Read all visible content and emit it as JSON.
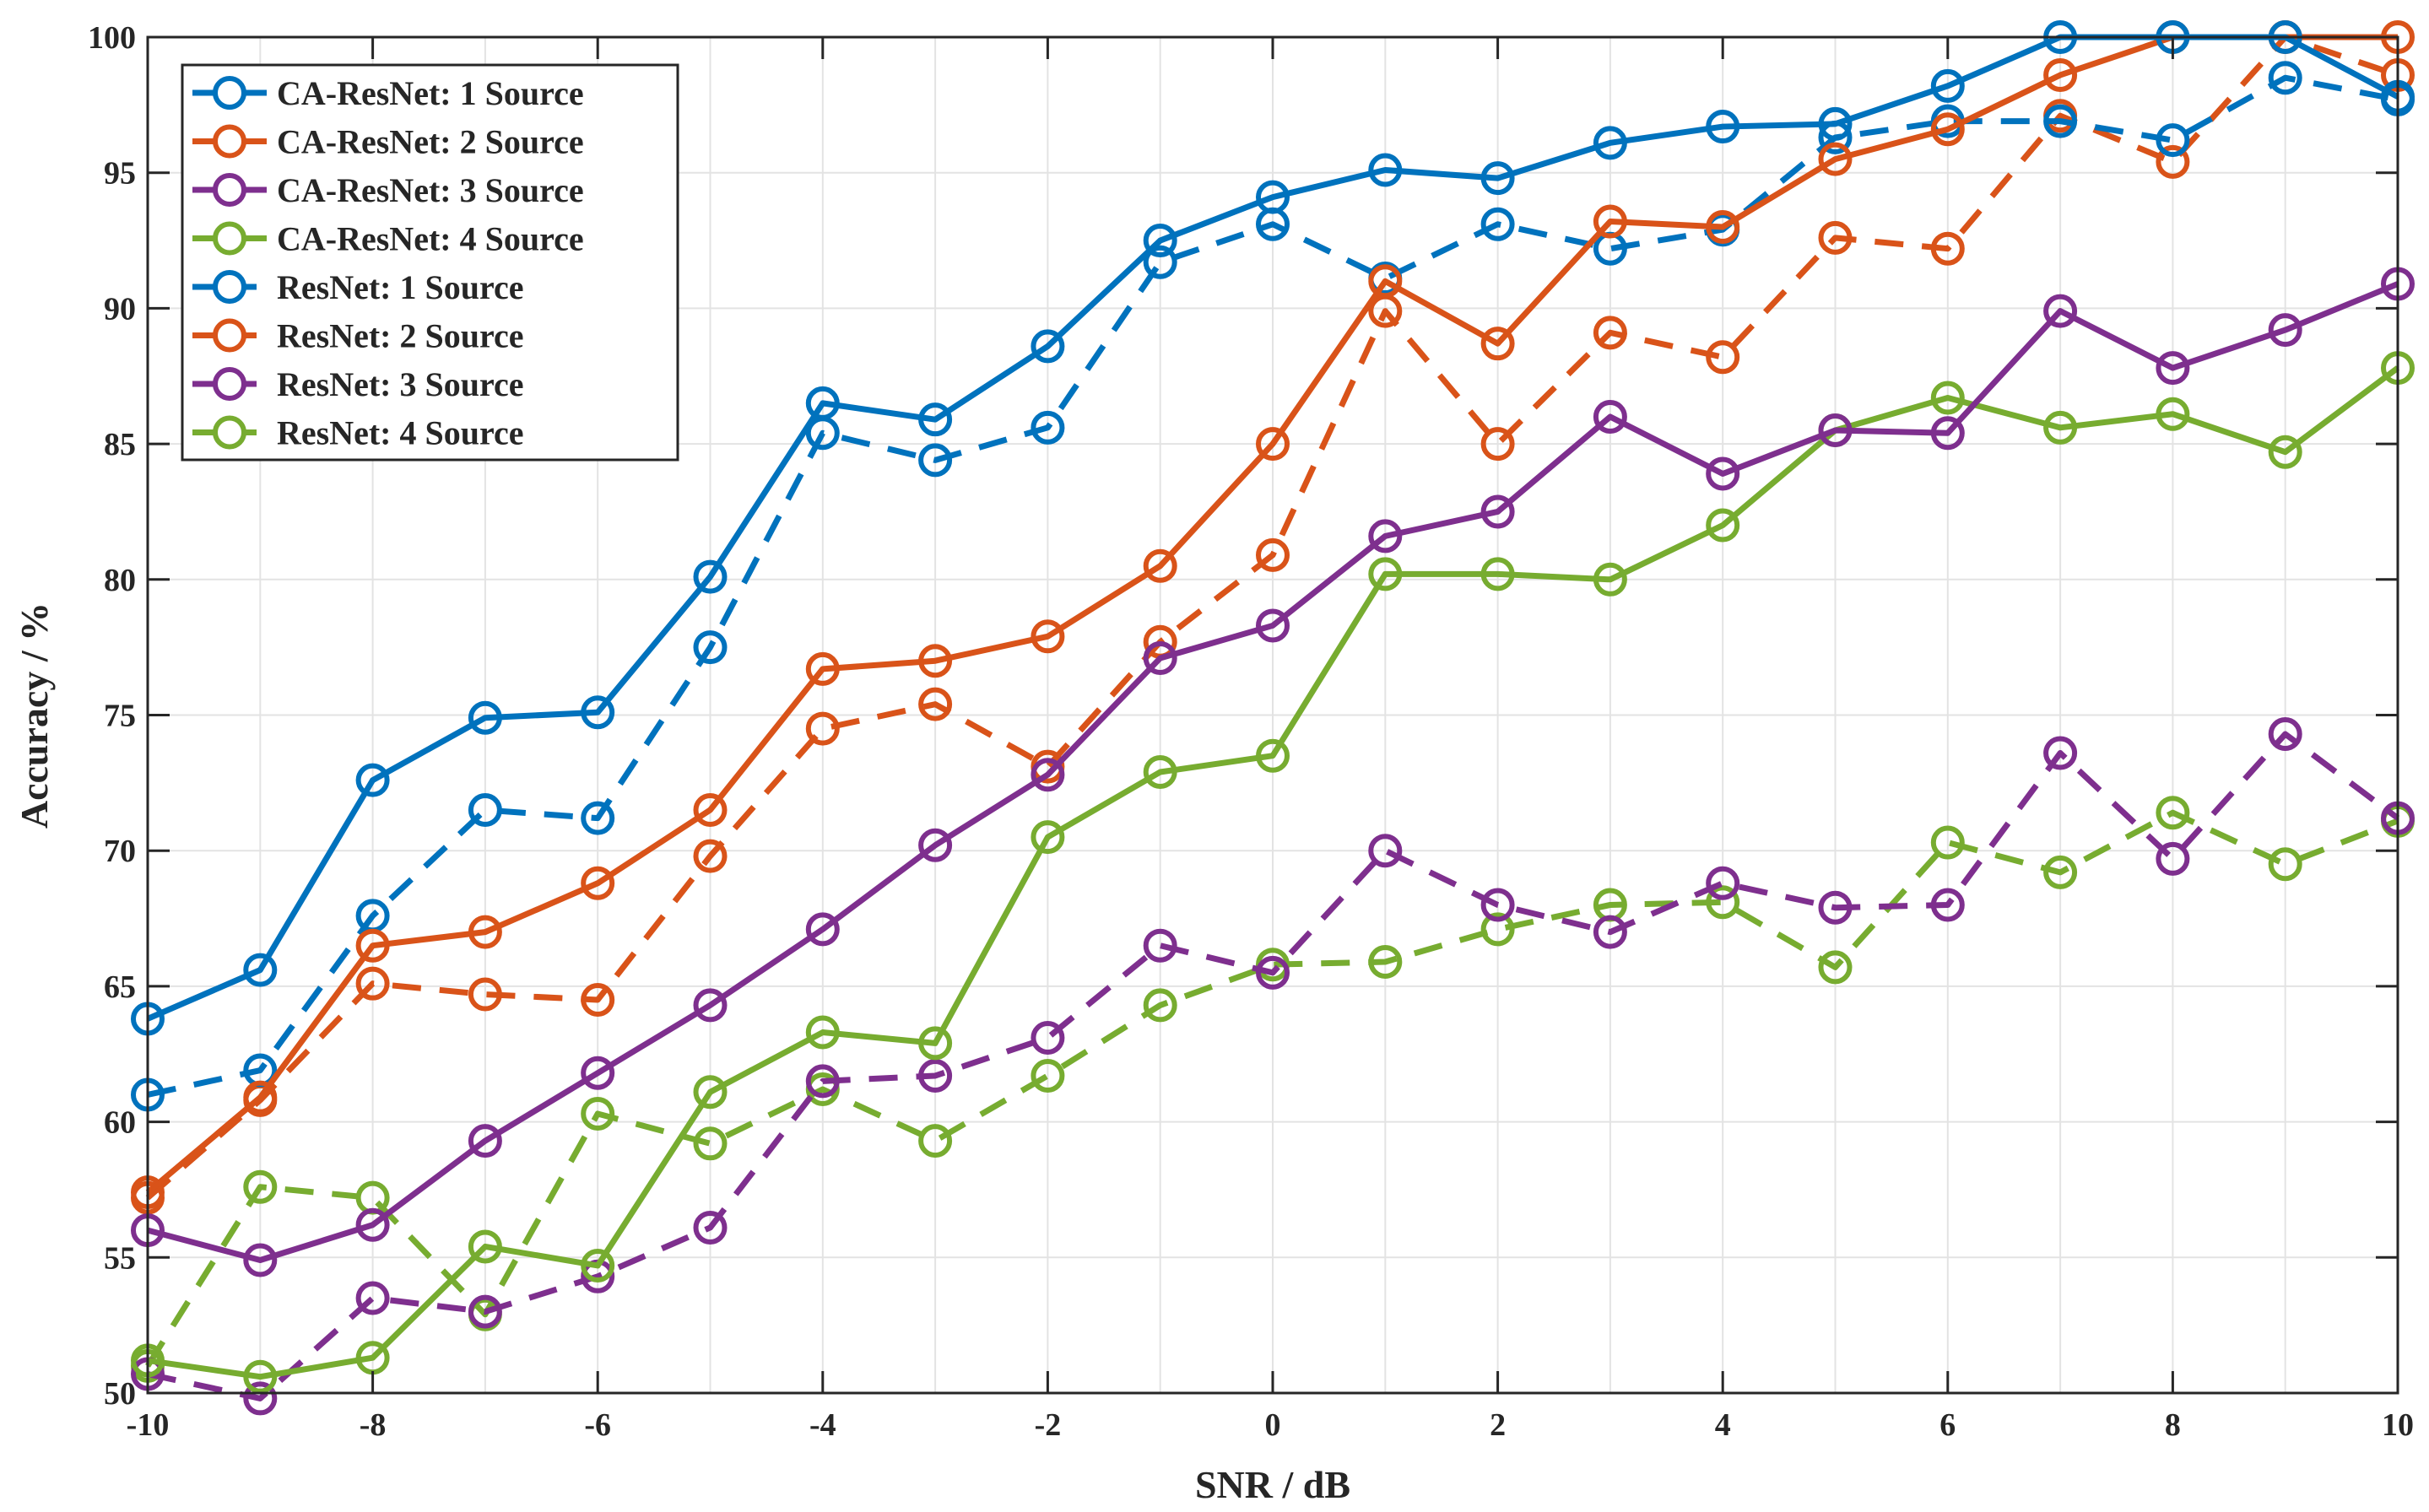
{
  "chart_data": {
    "type": "line",
    "xlabel": "SNR / dB",
    "ylabel": "Accuracy / %",
    "xlim": [
      -10,
      10
    ],
    "ylim": [
      50,
      100
    ],
    "xticks": [
      -10,
      -8,
      -6,
      -4,
      -2,
      0,
      2,
      4,
      6,
      8,
      10
    ],
    "yticks": [
      50,
      55,
      60,
      65,
      70,
      75,
      80,
      85,
      90,
      95,
      100
    ],
    "grid": true,
    "legend_position": "top-left",
    "marker": "circle",
    "x": [
      -10,
      -9,
      -8,
      -7,
      -6,
      -5,
      -4,
      -3,
      -2,
      -1,
      0,
      1,
      2,
      3,
      4,
      5,
      6,
      7,
      8,
      9,
      10
    ],
    "series": [
      {
        "name": "CA-ResNet: 1 Source",
        "color": "#0072BD",
        "style": "solid",
        "values": [
          63.8,
          65.6,
          72.6,
          74.9,
          75.1,
          80.1,
          86.5,
          85.9,
          88.6,
          92.5,
          94.1,
          95.1,
          94.8,
          96.1,
          96.7,
          96.8,
          98.2,
          100,
          100,
          100,
          97.8
        ]
      },
      {
        "name": "CA-ResNet: 2 Source",
        "color": "#D95319",
        "style": "solid",
        "values": [
          57.4,
          60.9,
          66.5,
          67.0,
          68.8,
          71.5,
          76.7,
          77.0,
          77.9,
          80.5,
          85.0,
          91.0,
          88.7,
          93.2,
          93.0,
          95.5,
          96.6,
          98.6,
          100,
          100,
          100
        ]
      },
      {
        "name": "CA-ResNet: 3 Source",
        "color": "#7E2F8E",
        "style": "solid",
        "values": [
          56.0,
          54.9,
          56.2,
          59.3,
          61.8,
          64.3,
          67.1,
          70.2,
          72.8,
          77.1,
          78.3,
          81.6,
          82.5,
          86.0,
          83.9,
          85.5,
          85.4,
          89.9,
          87.8,
          89.2,
          90.9
        ]
      },
      {
        "name": "CA-ResNet: 4 Source",
        "color": "#77AC30",
        "style": "solid",
        "values": [
          51.2,
          50.6,
          51.3,
          55.4,
          54.7,
          61.1,
          63.3,
          62.9,
          70.5,
          72.9,
          73.5,
          80.2,
          80.2,
          80.0,
          82.0,
          85.5,
          86.7,
          85.6,
          86.1,
          84.7,
          87.8
        ]
      },
      {
        "name": "ResNet: 1 Source",
        "color": "#0072BD",
        "style": "dashed",
        "values": [
          61.0,
          61.9,
          67.6,
          71.5,
          71.2,
          77.5,
          85.4,
          84.4,
          85.6,
          91.7,
          93.1,
          91.1,
          93.1,
          92.2,
          92.9,
          96.3,
          96.9,
          96.9,
          96.2,
          98.5,
          97.7
        ]
      },
      {
        "name": "ResNet: 2 Source",
        "color": "#D95319",
        "style": "dashed",
        "values": [
          57.2,
          60.8,
          65.1,
          64.7,
          64.5,
          69.8,
          74.5,
          75.4,
          73.1,
          77.7,
          80.9,
          89.9,
          85.0,
          89.1,
          88.2,
          92.6,
          92.2,
          97.1,
          95.4,
          100,
          98.6
        ]
      },
      {
        "name": "ResNet: 3 Source",
        "color": "#7E2F8E",
        "style": "dashed",
        "values": [
          50.7,
          49.8,
          53.5,
          53.0,
          54.3,
          56.1,
          61.5,
          61.7,
          63.1,
          66.5,
          65.5,
          70.0,
          68.0,
          67.0,
          68.8,
          67.9,
          68.0,
          73.6,
          69.7,
          74.3,
          71.2
        ]
      },
      {
        "name": "ResNet: 4 Source",
        "color": "#77AC30",
        "style": "dashed",
        "values": [
          51.0,
          57.6,
          57.2,
          52.9,
          60.3,
          59.2,
          61.2,
          59.3,
          61.7,
          64.3,
          65.8,
          65.9,
          67.1,
          68.0,
          68.1,
          65.7,
          70.3,
          69.2,
          71.4,
          69.5,
          71.1
        ]
      }
    ]
  }
}
